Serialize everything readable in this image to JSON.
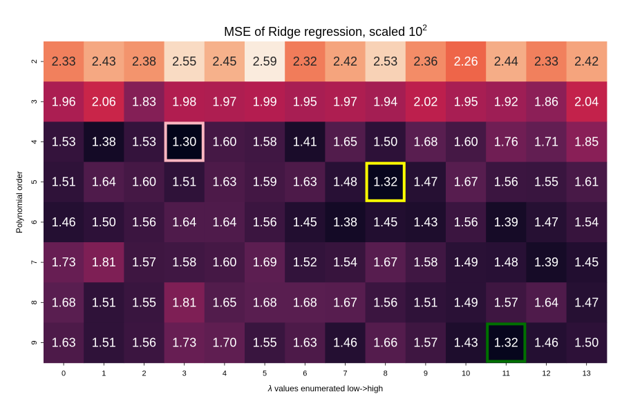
{
  "chart_data": {
    "type": "heatmap",
    "title_prefix": "MSE of Ridge regression, scaled ",
    "title_base": "10",
    "title_exponent": "2",
    "xlabel_symbol": "λ",
    "xlabel_rest": " values enumerated low->high",
    "ylabel": "Polynomial order",
    "x_categories": [
      "0",
      "1",
      "2",
      "3",
      "4",
      "5",
      "6",
      "7",
      "8",
      "9",
      "10",
      "11",
      "12",
      "13"
    ],
    "y_categories": [
      "2",
      "3",
      "4",
      "5",
      "6",
      "7",
      "8",
      "9"
    ],
    "values": [
      [
        2.33,
        2.43,
        2.38,
        2.55,
        2.45,
        2.59,
        2.32,
        2.42,
        2.53,
        2.36,
        2.26,
        2.44,
        2.33,
        2.42
      ],
      [
        1.96,
        2.06,
        1.83,
        1.98,
        1.97,
        1.99,
        1.95,
        1.97,
        1.94,
        2.02,
        1.95,
        1.92,
        1.86,
        2.04
      ],
      [
        1.53,
        1.38,
        1.53,
        1.3,
        1.6,
        1.58,
        1.41,
        1.65,
        1.5,
        1.68,
        1.6,
        1.76,
        1.71,
        1.85
      ],
      [
        1.51,
        1.64,
        1.6,
        1.51,
        1.63,
        1.59,
        1.63,
        1.48,
        1.32,
        1.47,
        1.67,
        1.56,
        1.55,
        1.61
      ],
      [
        1.46,
        1.5,
        1.56,
        1.64,
        1.64,
        1.56,
        1.45,
        1.38,
        1.45,
        1.43,
        1.56,
        1.39,
        1.47,
        1.54
      ],
      [
        1.73,
        1.81,
        1.57,
        1.58,
        1.6,
        1.69,
        1.52,
        1.54,
        1.67,
        1.58,
        1.49,
        1.48,
        1.39,
        1.45
      ],
      [
        1.68,
        1.51,
        1.55,
        1.81,
        1.65,
        1.68,
        1.68,
        1.67,
        1.56,
        1.51,
        1.49,
        1.57,
        1.64,
        1.47
      ],
      [
        1.63,
        1.51,
        1.56,
        1.73,
        1.7,
        1.55,
        1.63,
        1.46,
        1.66,
        1.57,
        1.43,
        1.32,
        1.46,
        1.5
      ]
    ],
    "value_format_decimals": 2,
    "colormap": "rocket",
    "vmin": 1.3,
    "vmax": 2.59,
    "highlights": [
      {
        "row": 2,
        "col": 3,
        "color": "#ffb6c1"
      },
      {
        "row": 3,
        "col": 8,
        "color": "#ffff00"
      },
      {
        "row": 7,
        "col": 11,
        "color": "#007000"
      }
    ]
  }
}
